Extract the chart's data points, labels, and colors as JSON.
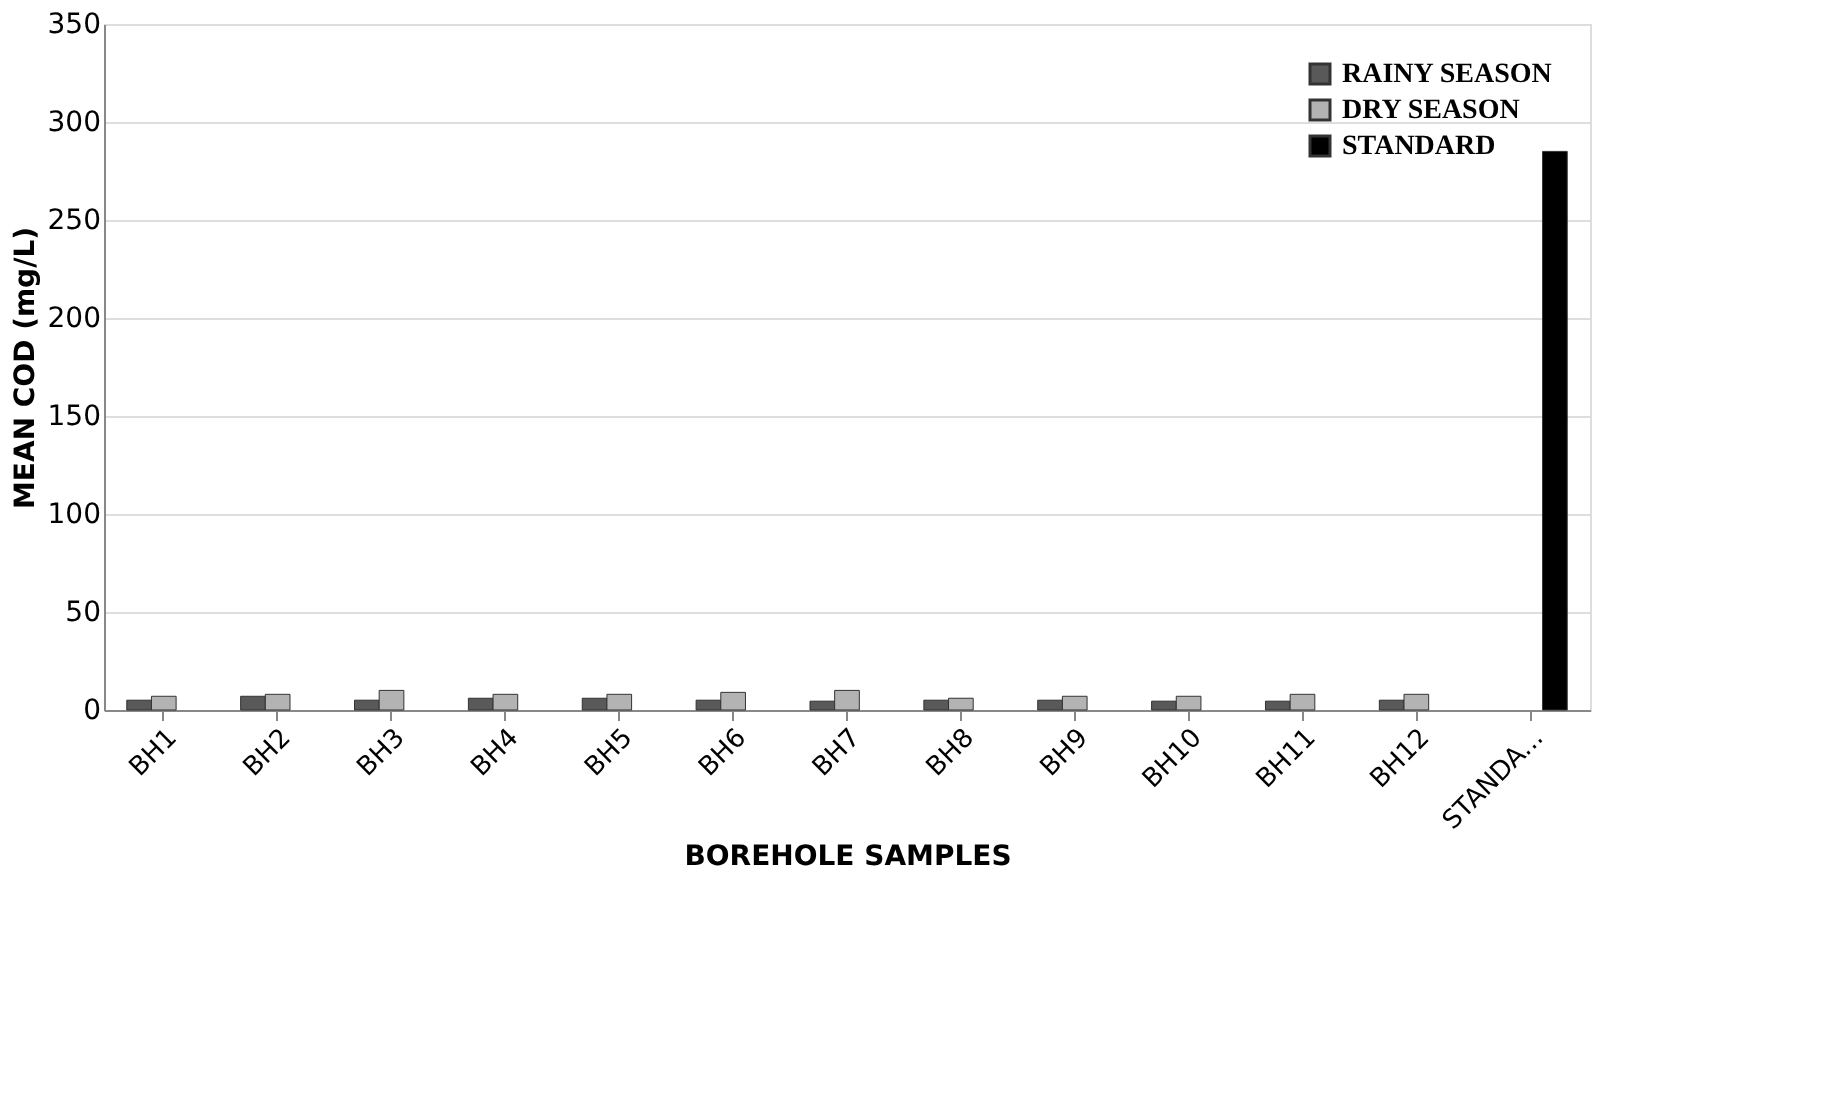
{
  "chart_data": {
    "type": "bar",
    "xlabel": "BOREHOLE SAMPLES",
    "ylabel": "MEAN COD (mg/L)",
    "categories": [
      "BH1",
      "BH2",
      "BH3",
      "BH4",
      "BH5",
      "BH6",
      "BH7",
      "BH8",
      "BH9",
      "BH10",
      "BH11",
      "BH12",
      "STANDA..."
    ],
    "series": [
      {
        "name": "RAINY SEASON",
        "color": "#595959",
        "values": [
          5,
          7,
          5,
          6,
          6,
          5,
          4.5,
          5,
          5,
          4.5,
          4.5,
          5,
          null
        ]
      },
      {
        "name": "DRY SEASON",
        "color": "#b3b3b3",
        "values": [
          7,
          8,
          10,
          8,
          8,
          9,
          10,
          6,
          7,
          7,
          8,
          8,
          null
        ]
      },
      {
        "name": "STANDARD",
        "color": "#000000",
        "values": [
          null,
          null,
          null,
          null,
          null,
          null,
          null,
          null,
          null,
          null,
          null,
          null,
          285
        ]
      }
    ],
    "ylim": [
      0,
      350
    ],
    "yticks": [
      0,
      50,
      100,
      150,
      200,
      250,
      300,
      350
    ],
    "grid": "y",
    "legend": "top right"
  }
}
